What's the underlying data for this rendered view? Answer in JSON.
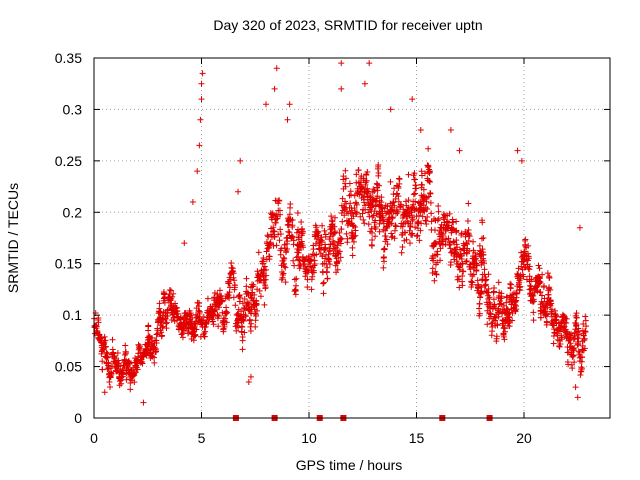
{
  "chart_data": {
    "type": "scatter",
    "title": "Day 320 of 2023, SRMTID for receiver uptn",
    "xlabel": "GPS time / hours",
    "ylabel": "SRMTID / TECUs",
    "xlim": [
      0,
      24
    ],
    "ylim": [
      0,
      0.35
    ],
    "x_ticks": [
      0,
      5,
      10,
      15,
      20
    ],
    "x_tick_labels": [
      "0",
      "5",
      "10",
      "15",
      "20"
    ],
    "y_ticks": [
      0,
      0.05,
      0.1,
      0.15,
      0.2,
      0.25,
      0.3,
      0.35
    ],
    "y_tick_labels": [
      "0",
      "0.05",
      "0.1",
      "0.15",
      "0.2",
      "0.25",
      "0.3",
      "0.35"
    ],
    "grid": true,
    "marker_color": "#e00000",
    "series_trend": {
      "name": "SRMTID",
      "x": [
        0.0,
        0.2,
        0.4,
        0.6,
        0.8,
        1.0,
        1.5,
        2.0,
        2.5,
        3.0,
        3.5,
        4.0,
        4.5,
        5.0,
        5.5,
        6.0,
        6.5,
        7.0,
        7.5,
        8.0,
        8.5,
        9.0,
        9.5,
        10.0,
        10.5,
        11.0,
        11.5,
        12.0,
        12.5,
        13.0,
        13.5,
        14.0,
        14.5,
        15.0,
        15.5,
        16.0,
        16.5,
        17.0,
        17.5,
        18.0,
        18.5,
        19.0,
        19.5,
        20.0,
        20.5,
        21.0,
        21.5,
        22.0,
        22.5,
        22.9
      ],
      "y": [
        0.1,
        0.09,
        0.07,
        0.06,
        0.055,
        0.05,
        0.05,
        0.055,
        0.06,
        0.1,
        0.11,
        0.09,
        0.09,
        0.1,
        0.105,
        0.11,
        0.12,
        0.1,
        0.14,
        0.17,
        0.18,
        0.185,
        0.175,
        0.16,
        0.165,
        0.17,
        0.19,
        0.21,
        0.215,
        0.2,
        0.18,
        0.2,
        0.21,
        0.22,
        0.21,
        0.19,
        0.19,
        0.17,
        0.16,
        0.15,
        0.12,
        0.1,
        0.12,
        0.14,
        0.14,
        0.12,
        0.1,
        0.08,
        0.07,
        0.09
      ],
      "spread": [
        0.03,
        0.03,
        0.025,
        0.02,
        0.02,
        0.02,
        0.02,
        0.02,
        0.02,
        0.025,
        0.025,
        0.02,
        0.02,
        0.03,
        0.03,
        0.03,
        0.035,
        0.04,
        0.04,
        0.045,
        0.05,
        0.05,
        0.045,
        0.04,
        0.04,
        0.045,
        0.05,
        0.05,
        0.05,
        0.05,
        0.05,
        0.05,
        0.05,
        0.05,
        0.05,
        0.05,
        0.045,
        0.045,
        0.04,
        0.04,
        0.04,
        0.035,
        0.035,
        0.035,
        0.035,
        0.035,
        0.03,
        0.03,
        0.03,
        0.03
      ]
    },
    "outliers": [
      {
        "x": 4.2,
        "y": 0.17
      },
      {
        "x": 4.6,
        "y": 0.21
      },
      {
        "x": 4.8,
        "y": 0.24
      },
      {
        "x": 4.9,
        "y": 0.265
      },
      {
        "x": 4.95,
        "y": 0.29
      },
      {
        "x": 5.0,
        "y": 0.31
      },
      {
        "x": 5.0,
        "y": 0.325
      },
      {
        "x": 5.05,
        "y": 0.335
      },
      {
        "x": 6.8,
        "y": 0.25
      },
      {
        "x": 6.7,
        "y": 0.22
      },
      {
        "x": 8.0,
        "y": 0.305
      },
      {
        "x": 8.4,
        "y": 0.32
      },
      {
        "x": 8.5,
        "y": 0.34
      },
      {
        "x": 9.0,
        "y": 0.29
      },
      {
        "x": 9.1,
        "y": 0.305
      },
      {
        "x": 11.5,
        "y": 0.32
      },
      {
        "x": 11.5,
        "y": 0.345
      },
      {
        "x": 12.6,
        "y": 0.325
      },
      {
        "x": 12.8,
        "y": 0.345
      },
      {
        "x": 13.8,
        "y": 0.3
      },
      {
        "x": 14.8,
        "y": 0.31
      },
      {
        "x": 15.2,
        "y": 0.28
      },
      {
        "x": 16.6,
        "y": 0.28
      },
      {
        "x": 17.0,
        "y": 0.26
      },
      {
        "x": 19.7,
        "y": 0.26
      },
      {
        "x": 19.9,
        "y": 0.25
      },
      {
        "x": 22.6,
        "y": 0.185
      },
      {
        "x": 22.5,
        "y": 0.02
      },
      {
        "x": 22.4,
        "y": 0.03
      },
      {
        "x": 7.2,
        "y": 0.035
      },
      {
        "x": 7.3,
        "y": 0.04
      },
      {
        "x": 2.3,
        "y": 0.015
      },
      {
        "x": 0.5,
        "y": 0.025
      }
    ],
    "baseline_markers_x": [
      6.6,
      8.4,
      10.5,
      11.6,
      16.2,
      18.4
    ],
    "point_count": 2300,
    "random_seed": 320
  }
}
